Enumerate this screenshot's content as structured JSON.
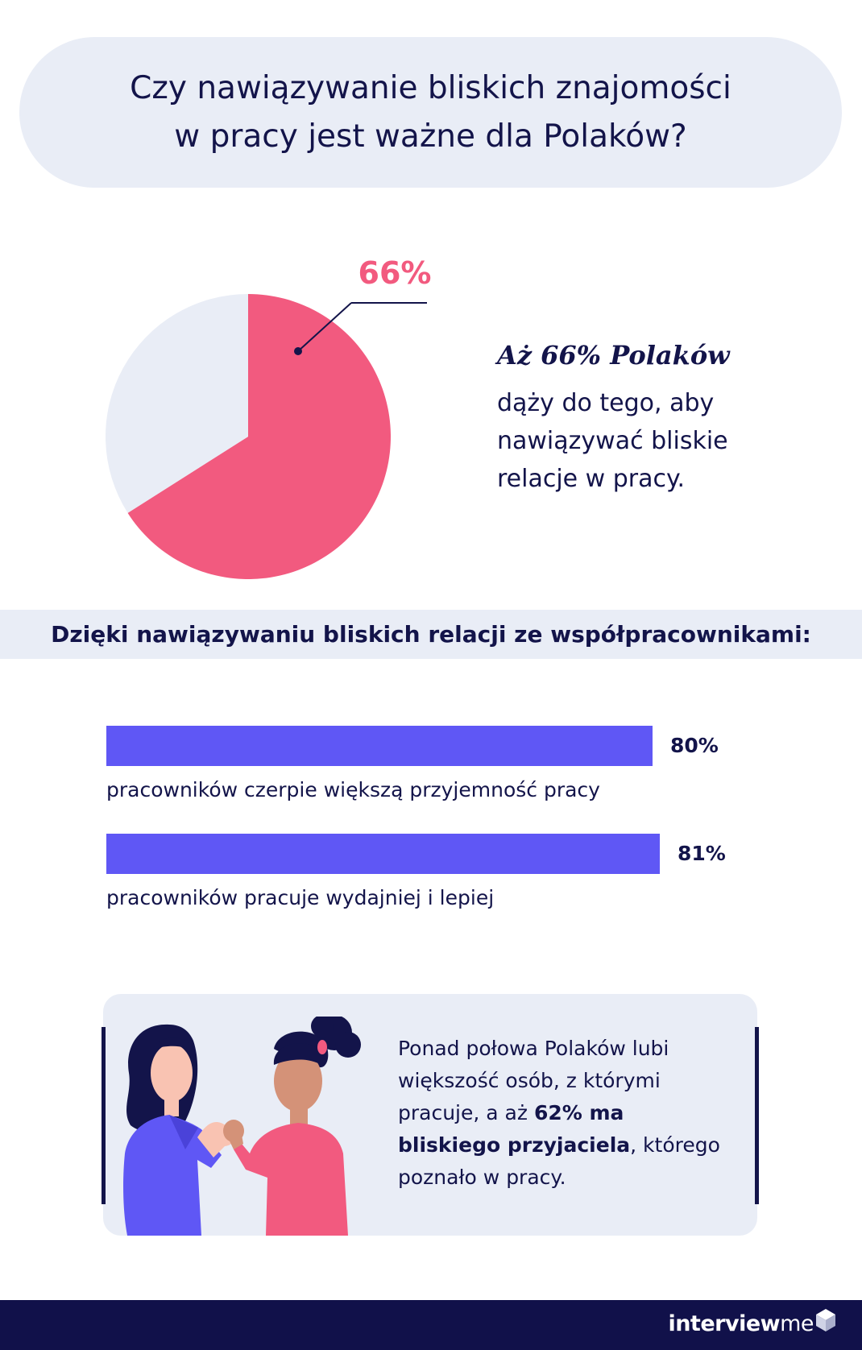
{
  "header": {
    "title_line1": "Czy nawiązywanie bliskich znajomości",
    "title_line2": "w pracy jest ważne dla Polaków?"
  },
  "chart_data": [
    {
      "type": "pie",
      "slices": [
        {
          "label": "66%",
          "value": 66,
          "color": "#f25a7f"
        },
        {
          "value": 34,
          "color": "#e9edf6"
        }
      ],
      "annotation": "66%"
    },
    {
      "type": "bar",
      "orientation": "horizontal",
      "title": "Dzięki nawiązywaniu bliskich relacji ze współpracownikami:",
      "categories": [
        "pracowników czerpie większą przyjemność pracy",
        "pracowników pracuje wydajniej i lepiej"
      ],
      "values": [
        80,
        81
      ],
      "value_labels": [
        "80%",
        "81%"
      ],
      "color": "#5f57f5"
    }
  ],
  "highlight": {
    "title": "Aż 66% Polaków",
    "lines": [
      "dąży do tego, aby",
      "nawiązywać bliskie",
      "relacje w pracy."
    ]
  },
  "bars": {
    "header": "Dzięki nawiązywaniu bliskich relacji ze współpracownikami:",
    "items": [
      {
        "value": "80%",
        "label": "pracowników czerpie większą przyjemność pracy"
      },
      {
        "value": "81%",
        "label": "pracowników pracuje wydajniej i lepiej"
      }
    ]
  },
  "card": {
    "line1": "Ponad połowa Polaków lubi",
    "line2": "większość osób, z którymi",
    "line3_pre": "pracuje, a aż ",
    "line3_bold": "62% ma",
    "line4_bold": "bliskiego przyjaciela",
    "line4_post": ", którego",
    "line5": "poznało w pracy."
  },
  "footer": {
    "brand_regular": "interview",
    "brand_bold": "me"
  },
  "colors": {
    "navy": "#13144a",
    "pink": "#f25a7f",
    "purple": "#5f57f5",
    "light": "#e9edf6",
    "footer": "#11114a"
  }
}
